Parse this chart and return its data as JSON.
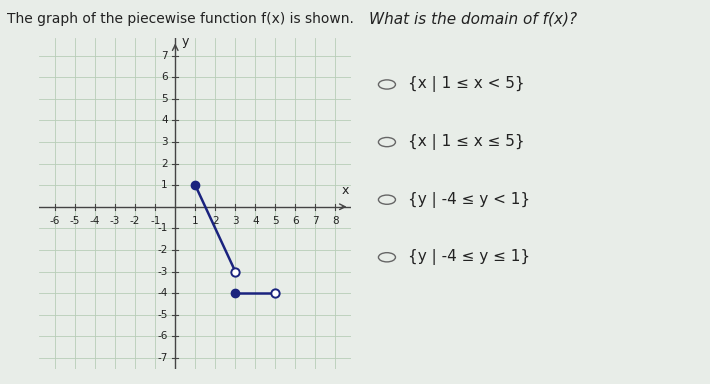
{
  "title_left": "The graph of the piecewise function f(x) is shown.",
  "question": "What is the domain of f(x)?",
  "choices": [
    "{x | 1 ≤ x < 5}",
    "{x | 1 ≤ x ≤ 5}",
    "{y | -4 ≤ y < 1}",
    "{y | -4 ≤ y ≤ 1}"
  ],
  "segment1": {
    "x": [
      1,
      3
    ],
    "y": [
      1,
      -3
    ]
  },
  "segment2": {
    "x": [
      3,
      5
    ],
    "y": [
      -4,
      -4
    ]
  },
  "xlim": [
    -6.8,
    8.8
  ],
  "ylim": [
    -7.5,
    7.8
  ],
  "xticks": [
    -6,
    -5,
    -4,
    -3,
    -2,
    -1,
    1,
    2,
    3,
    4,
    5,
    6,
    7,
    8
  ],
  "yticks": [
    -7,
    -6,
    -5,
    -4,
    -3,
    -2,
    -1,
    1,
    2,
    3,
    4,
    5,
    6,
    7
  ],
  "line_color": "#1a237e",
  "dot_filled_color": "#1a237e",
  "dot_open_color": "white",
  "dot_edge_color": "#1a237e",
  "dot_size": 6,
  "grid_color": "#b8cdb8",
  "bg_color": "#e8ede8",
  "page_bg": "#e8ede8",
  "text_color": "#222222",
  "title_fontsize": 10,
  "question_fontsize": 11,
  "choice_fontsize": 11,
  "tick_fontsize": 7.5,
  "axis_label_fontsize": 9
}
